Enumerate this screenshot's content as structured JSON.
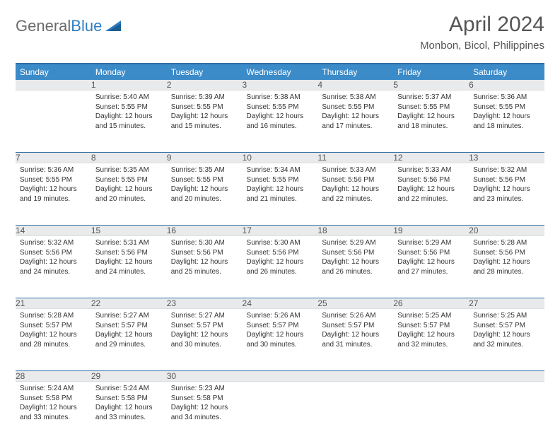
{
  "logo": {
    "text1": "General",
    "text2": "Blue"
  },
  "title": "April 2024",
  "location": "Monbon, Bicol, Philippines",
  "colors": {
    "header_bg": "#3b8bc9",
    "header_border": "#2f6ea3",
    "daynum_bg": "#e8eaec",
    "text": "#333333",
    "title_text": "#555555"
  },
  "weekdays": [
    "Sunday",
    "Monday",
    "Tuesday",
    "Wednesday",
    "Thursday",
    "Friday",
    "Saturday"
  ],
  "weeks": [
    [
      {
        "n": "",
        "sunrise": "",
        "sunset": "",
        "daylight": ""
      },
      {
        "n": "1",
        "sunrise": "Sunrise: 5:40 AM",
        "sunset": "Sunset: 5:55 PM",
        "daylight": "Daylight: 12 hours and 15 minutes."
      },
      {
        "n": "2",
        "sunrise": "Sunrise: 5:39 AM",
        "sunset": "Sunset: 5:55 PM",
        "daylight": "Daylight: 12 hours and 15 minutes."
      },
      {
        "n": "3",
        "sunrise": "Sunrise: 5:38 AM",
        "sunset": "Sunset: 5:55 PM",
        "daylight": "Daylight: 12 hours and 16 minutes."
      },
      {
        "n": "4",
        "sunrise": "Sunrise: 5:38 AM",
        "sunset": "Sunset: 5:55 PM",
        "daylight": "Daylight: 12 hours and 17 minutes."
      },
      {
        "n": "5",
        "sunrise": "Sunrise: 5:37 AM",
        "sunset": "Sunset: 5:55 PM",
        "daylight": "Daylight: 12 hours and 18 minutes."
      },
      {
        "n": "6",
        "sunrise": "Sunrise: 5:36 AM",
        "sunset": "Sunset: 5:55 PM",
        "daylight": "Daylight: 12 hours and 18 minutes."
      }
    ],
    [
      {
        "n": "7",
        "sunrise": "Sunrise: 5:36 AM",
        "sunset": "Sunset: 5:55 PM",
        "daylight": "Daylight: 12 hours and 19 minutes."
      },
      {
        "n": "8",
        "sunrise": "Sunrise: 5:35 AM",
        "sunset": "Sunset: 5:55 PM",
        "daylight": "Daylight: 12 hours and 20 minutes."
      },
      {
        "n": "9",
        "sunrise": "Sunrise: 5:35 AM",
        "sunset": "Sunset: 5:55 PM",
        "daylight": "Daylight: 12 hours and 20 minutes."
      },
      {
        "n": "10",
        "sunrise": "Sunrise: 5:34 AM",
        "sunset": "Sunset: 5:55 PM",
        "daylight": "Daylight: 12 hours and 21 minutes."
      },
      {
        "n": "11",
        "sunrise": "Sunrise: 5:33 AM",
        "sunset": "Sunset: 5:56 PM",
        "daylight": "Daylight: 12 hours and 22 minutes."
      },
      {
        "n": "12",
        "sunrise": "Sunrise: 5:33 AM",
        "sunset": "Sunset: 5:56 PM",
        "daylight": "Daylight: 12 hours and 22 minutes."
      },
      {
        "n": "13",
        "sunrise": "Sunrise: 5:32 AM",
        "sunset": "Sunset: 5:56 PM",
        "daylight": "Daylight: 12 hours and 23 minutes."
      }
    ],
    [
      {
        "n": "14",
        "sunrise": "Sunrise: 5:32 AM",
        "sunset": "Sunset: 5:56 PM",
        "daylight": "Daylight: 12 hours and 24 minutes."
      },
      {
        "n": "15",
        "sunrise": "Sunrise: 5:31 AM",
        "sunset": "Sunset: 5:56 PM",
        "daylight": "Daylight: 12 hours and 24 minutes."
      },
      {
        "n": "16",
        "sunrise": "Sunrise: 5:30 AM",
        "sunset": "Sunset: 5:56 PM",
        "daylight": "Daylight: 12 hours and 25 minutes."
      },
      {
        "n": "17",
        "sunrise": "Sunrise: 5:30 AM",
        "sunset": "Sunset: 5:56 PM",
        "daylight": "Daylight: 12 hours and 26 minutes."
      },
      {
        "n": "18",
        "sunrise": "Sunrise: 5:29 AM",
        "sunset": "Sunset: 5:56 PM",
        "daylight": "Daylight: 12 hours and 26 minutes."
      },
      {
        "n": "19",
        "sunrise": "Sunrise: 5:29 AM",
        "sunset": "Sunset: 5:56 PM",
        "daylight": "Daylight: 12 hours and 27 minutes."
      },
      {
        "n": "20",
        "sunrise": "Sunrise: 5:28 AM",
        "sunset": "Sunset: 5:56 PM",
        "daylight": "Daylight: 12 hours and 28 minutes."
      }
    ],
    [
      {
        "n": "21",
        "sunrise": "Sunrise: 5:28 AM",
        "sunset": "Sunset: 5:57 PM",
        "daylight": "Daylight: 12 hours and 28 minutes."
      },
      {
        "n": "22",
        "sunrise": "Sunrise: 5:27 AM",
        "sunset": "Sunset: 5:57 PM",
        "daylight": "Daylight: 12 hours and 29 minutes."
      },
      {
        "n": "23",
        "sunrise": "Sunrise: 5:27 AM",
        "sunset": "Sunset: 5:57 PM",
        "daylight": "Daylight: 12 hours and 30 minutes."
      },
      {
        "n": "24",
        "sunrise": "Sunrise: 5:26 AM",
        "sunset": "Sunset: 5:57 PM",
        "daylight": "Daylight: 12 hours and 30 minutes."
      },
      {
        "n": "25",
        "sunrise": "Sunrise: 5:26 AM",
        "sunset": "Sunset: 5:57 PM",
        "daylight": "Daylight: 12 hours and 31 minutes."
      },
      {
        "n": "26",
        "sunrise": "Sunrise: 5:25 AM",
        "sunset": "Sunset: 5:57 PM",
        "daylight": "Daylight: 12 hours and 32 minutes."
      },
      {
        "n": "27",
        "sunrise": "Sunrise: 5:25 AM",
        "sunset": "Sunset: 5:57 PM",
        "daylight": "Daylight: 12 hours and 32 minutes."
      }
    ],
    [
      {
        "n": "28",
        "sunrise": "Sunrise: 5:24 AM",
        "sunset": "Sunset: 5:58 PM",
        "daylight": "Daylight: 12 hours and 33 minutes."
      },
      {
        "n": "29",
        "sunrise": "Sunrise: 5:24 AM",
        "sunset": "Sunset: 5:58 PM",
        "daylight": "Daylight: 12 hours and 33 minutes."
      },
      {
        "n": "30",
        "sunrise": "Sunrise: 5:23 AM",
        "sunset": "Sunset: 5:58 PM",
        "daylight": "Daylight: 12 hours and 34 minutes."
      },
      {
        "n": "",
        "sunrise": "",
        "sunset": "",
        "daylight": ""
      },
      {
        "n": "",
        "sunrise": "",
        "sunset": "",
        "daylight": ""
      },
      {
        "n": "",
        "sunrise": "",
        "sunset": "",
        "daylight": ""
      },
      {
        "n": "",
        "sunrise": "",
        "sunset": "",
        "daylight": ""
      }
    ]
  ]
}
